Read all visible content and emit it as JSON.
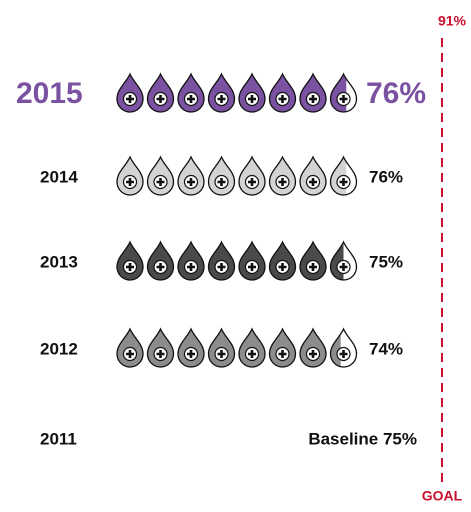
{
  "chart_data": {
    "type": "pictograph",
    "categories": [
      "2015",
      "2014",
      "2013",
      "2012"
    ],
    "values": [
      76,
      76,
      75,
      74
    ],
    "value_labels": [
      "76%",
      "76%",
      "75%",
      "74%"
    ],
    "colors": [
      "#7b52a1",
      "#d3d3d3",
      "#4a4a4a",
      "#8c8c8c"
    ],
    "baseline": {
      "category": "2011",
      "value": 75,
      "label": "Baseline 75%"
    },
    "goal": {
      "value": 91,
      "label": "91%",
      "text": "GOAL",
      "color": "#c8102e"
    }
  }
}
